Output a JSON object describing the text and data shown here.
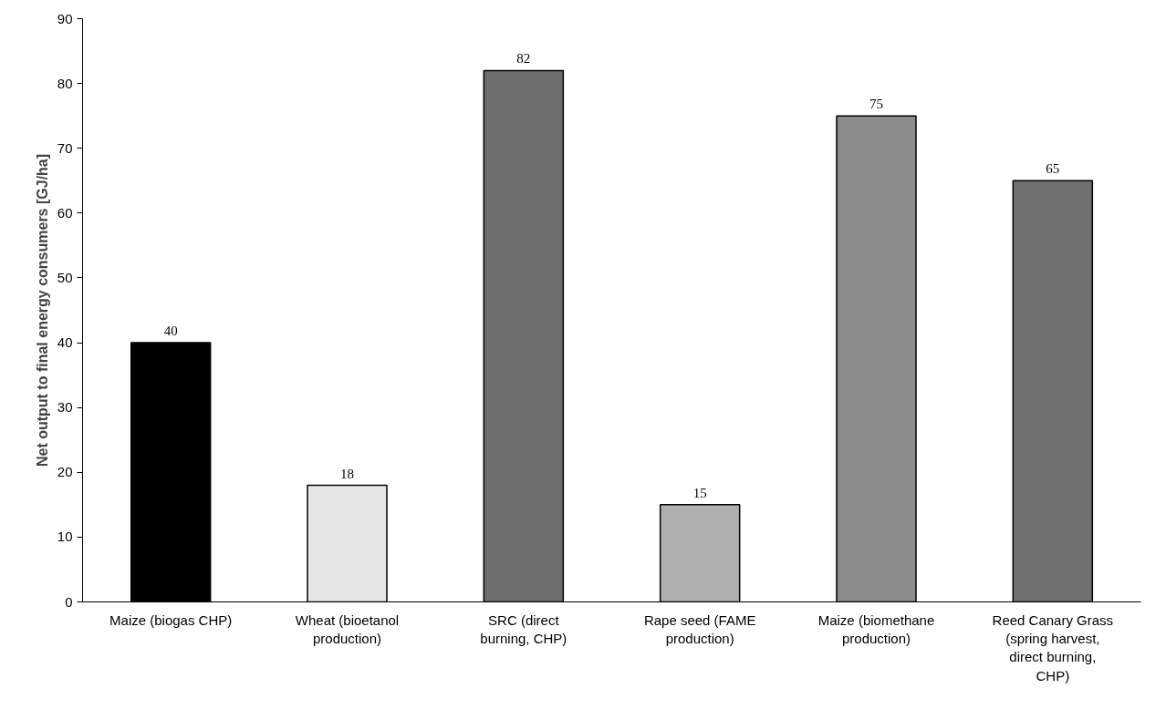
{
  "chart_data": {
    "type": "bar",
    "categories": [
      "Maize (biogas CHP)",
      "Wheat (bioetanol production)",
      "SRC (direct burning, CHP)",
      "Rape seed (FAME production)",
      "Maize (biomethane production)",
      "Reed Canary Grass (spring harvest, direct burning, CHP)"
    ],
    "values": [
      40,
      18,
      82,
      15,
      75,
      65
    ],
    "colors": [
      "#000000",
      "#e6e6e6",
      "#6e6e6e",
      "#b0b0b0",
      "#8c8c8c",
      "#707070"
    ],
    "ylabel": "Net output to final energy consumers [GJ/ha]",
    "ylim": [
      0,
      90
    ],
    "yticks": [
      0,
      10,
      20,
      30,
      40,
      50,
      60,
      70,
      80,
      90
    ],
    "grid": false,
    "data_labels": true
  }
}
